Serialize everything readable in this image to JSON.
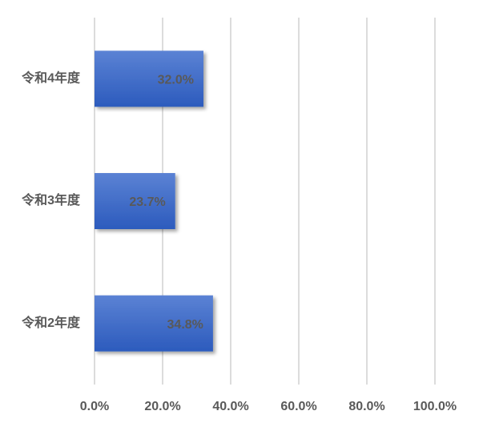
{
  "chart_data": {
    "type": "hbar",
    "categories": [
      "令和4年度",
      "令和3年度",
      "令和2年度"
    ],
    "values": [
      32.0,
      23.7,
      34.8
    ],
    "value_labels": [
      "32.0%",
      "23.7%",
      "34.8%"
    ],
    "color": "#3b67c4",
    "xlim": [
      0,
      100
    ],
    "xticks": [
      {
        "value": 0,
        "label": "0.0%"
      },
      {
        "value": 20,
        "label": "20.0%"
      },
      {
        "value": 40,
        "label": "40.0%"
      },
      {
        "value": 60,
        "label": "60.0%"
      },
      {
        "value": 80,
        "label": "80.0%"
      },
      {
        "value": 100,
        "label": "100.0%"
      }
    ],
    "grid": true
  }
}
